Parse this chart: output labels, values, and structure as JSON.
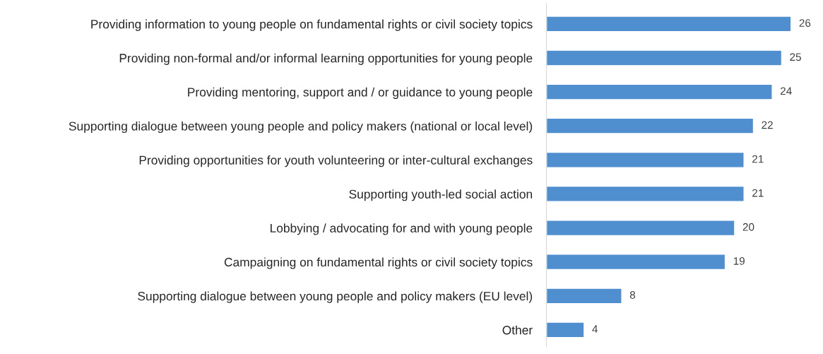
{
  "chart_data": {
    "type": "bar",
    "orientation": "horizontal",
    "categories": [
      "Providing information to young people on fundamental rights or civil society topics",
      "Providing non-formal and/or informal learning opportunities for young people",
      "Providing mentoring, support and / or guidance to young people",
      "Supporting dialogue between young people and policy makers (national or local level)",
      "Providing opportunities for youth volunteering or inter-cultural exchanges",
      "Supporting youth-led social action",
      "Lobbying / advocating for and with young people",
      "Campaigning on fundamental rights or civil society topics",
      "Supporting dialogue between young people and policy makers (EU level)",
      "Other"
    ],
    "values": [
      26,
      25,
      24,
      22,
      21,
      21,
      20,
      19,
      8,
      4
    ],
    "color": "#4f8fd0",
    "data_labels": true,
    "grid": false,
    "legend": false,
    "tick_labels": "y"
  }
}
